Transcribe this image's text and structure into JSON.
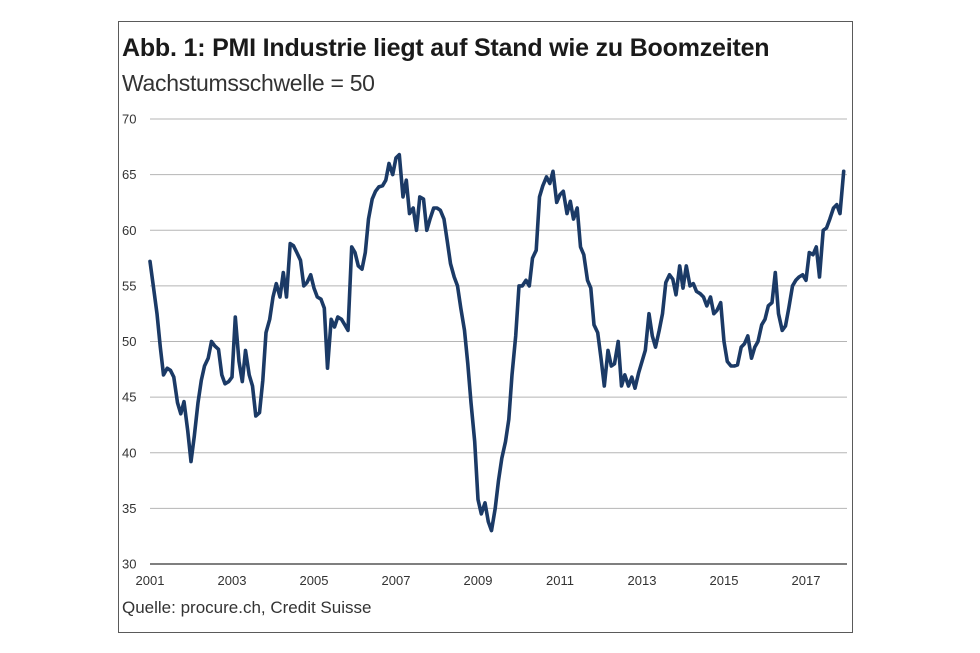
{
  "chart_data": {
    "type": "line",
    "title": "Abb. 1: PMI Industrie liegt auf Stand wie zu Boomzeiten",
    "subtitle": "Wachstumsschwelle = 50",
    "source": "Quelle: procure.ch, Credit Suisse",
    "xlabel": "",
    "ylabel": "",
    "ylim": [
      30,
      70
    ],
    "xlim": [
      2001.0,
      2017.95
    ],
    "grid": true,
    "legend": "none",
    "line_color": "#1b3a66",
    "y_ticks": [
      "30",
      "35",
      "40",
      "45",
      "50",
      "55",
      "60",
      "65",
      "70"
    ],
    "x_ticks": [
      "2001",
      "2003",
      "2005",
      "2007",
      "2009",
      "2011",
      "2013",
      "2015",
      "2017"
    ],
    "series": [
      {
        "name": "PMI Industrie",
        "x": [
          2001.0,
          2001.08,
          2001.17,
          2001.25,
          2001.33,
          2001.42,
          2001.5,
          2001.58,
          2001.67,
          2001.75,
          2001.83,
          2001.92,
          2002.0,
          2002.08,
          2002.17,
          2002.25,
          2002.33,
          2002.42,
          2002.5,
          2002.58,
          2002.67,
          2002.75,
          2002.83,
          2002.92,
          2003.0,
          2003.08,
          2003.17,
          2003.25,
          2003.33,
          2003.42,
          2003.5,
          2003.58,
          2003.67,
          2003.75,
          2003.83,
          2003.92,
          2004.0,
          2004.08,
          2004.17,
          2004.25,
          2004.33,
          2004.42,
          2004.5,
          2004.58,
          2004.67,
          2004.75,
          2004.83,
          2004.92,
          2005.0,
          2005.08,
          2005.17,
          2005.25,
          2005.33,
          2005.42,
          2005.5,
          2005.58,
          2005.67,
          2005.75,
          2005.83,
          2005.92,
          2006.0,
          2006.08,
          2006.17,
          2006.25,
          2006.33,
          2006.42,
          2006.5,
          2006.58,
          2006.67,
          2006.75,
          2006.83,
          2006.92,
          2007.0,
          2007.08,
          2007.17,
          2007.25,
          2007.33,
          2007.42,
          2007.5,
          2007.58,
          2007.67,
          2007.75,
          2007.83,
          2007.92,
          2008.0,
          2008.08,
          2008.17,
          2008.25,
          2008.33,
          2008.42,
          2008.5,
          2008.58,
          2008.67,
          2008.75,
          2008.83,
          2008.92,
          2009.0,
          2009.08,
          2009.17,
          2009.25,
          2009.33,
          2009.42,
          2009.5,
          2009.58,
          2009.67,
          2009.75,
          2009.83,
          2009.92,
          2010.0,
          2010.08,
          2010.17,
          2010.25,
          2010.33,
          2010.42,
          2010.5,
          2010.58,
          2010.67,
          2010.75,
          2010.83,
          2010.92,
          2011.0,
          2011.08,
          2011.17,
          2011.25,
          2011.33,
          2011.42,
          2011.5,
          2011.58,
          2011.67,
          2011.75,
          2011.83,
          2011.92,
          2012.0,
          2012.08,
          2012.17,
          2012.25,
          2012.33,
          2012.42,
          2012.5,
          2012.58,
          2012.67,
          2012.75,
          2012.83,
          2012.92,
          2013.0,
          2013.08,
          2013.17,
          2013.25,
          2013.33,
          2013.42,
          2013.5,
          2013.58,
          2013.67,
          2013.75,
          2013.83,
          2013.92,
          2014.0,
          2014.08,
          2014.17,
          2014.25,
          2014.33,
          2014.42,
          2014.5,
          2014.58,
          2014.67,
          2014.75,
          2014.83,
          2014.92,
          2015.0,
          2015.08,
          2015.17,
          2015.25,
          2015.33,
          2015.42,
          2015.5,
          2015.58,
          2015.67,
          2015.75,
          2015.83,
          2015.92,
          2016.0,
          2016.08,
          2016.17,
          2016.25,
          2016.33,
          2016.42,
          2016.5,
          2016.58,
          2016.67,
          2016.75,
          2016.83,
          2016.92,
          2017.0,
          2017.08,
          2017.17,
          2017.25,
          2017.33,
          2017.42,
          2017.5,
          2017.58,
          2017.67,
          2017.75,
          2017.83,
          2017.92
        ],
        "values": [
          57.2,
          55.0,
          52.5,
          49.5,
          47.0,
          47.6,
          47.4,
          46.8,
          44.5,
          43.5,
          44.6,
          42.0,
          39.2,
          41.5,
          44.5,
          46.5,
          47.8,
          48.5,
          50.0,
          49.6,
          49.3,
          47.0,
          46.2,
          46.4,
          46.8,
          52.2,
          48.2,
          46.4,
          49.2,
          47.0,
          46.0,
          43.3,
          43.6,
          46.5,
          50.8,
          52.0,
          54.0,
          55.2,
          54.0,
          56.2,
          54.0,
          58.8,
          58.6,
          58.0,
          57.3,
          55.0,
          55.3,
          56.0,
          54.8,
          54.0,
          53.8,
          53.0,
          47.6,
          52.0,
          51.3,
          52.2,
          52.0,
          51.5,
          51.0,
          58.5,
          58.0,
          56.8,
          56.5,
          58.0,
          61.0,
          62.8,
          63.5,
          63.9,
          64.0,
          64.5,
          66.0,
          65.0,
          66.5,
          66.8,
          63.0,
          64.5,
          61.5,
          62.0,
          60.0,
          63.0,
          62.8,
          60.0,
          61.0,
          62.0,
          62.0,
          61.8,
          61.0,
          59.0,
          57.0,
          55.8,
          55.0,
          53.0,
          51.0,
          48.0,
          44.5,
          41.0,
          35.8,
          34.5,
          35.5,
          33.8,
          33.0,
          35.0,
          37.5,
          39.5,
          41.0,
          43.0,
          47.0,
          50.5,
          55.0,
          55.0,
          55.5,
          55.0,
          57.5,
          58.2,
          63.0,
          64.0,
          64.8,
          64.2,
          65.3,
          62.5,
          63.2,
          63.5,
          61.5,
          62.6,
          61.0,
          62.0,
          58.5,
          57.8,
          55.5,
          54.8,
          51.5,
          50.8,
          48.5,
          46.0,
          49.2,
          47.8,
          48.0,
          50.0,
          46.0,
          47.0,
          46.0,
          46.8,
          45.8,
          47.2,
          48.2,
          49.2,
          52.5,
          50.5,
          49.5,
          51.0,
          52.5,
          55.3,
          56.0,
          55.6,
          54.2,
          56.8,
          54.8,
          56.8,
          55.0,
          55.2,
          54.5,
          54.3,
          54.0,
          53.2,
          54.0,
          52.5,
          52.8,
          53.5,
          50.0,
          48.2,
          47.8,
          47.8,
          47.9,
          49.5,
          49.8,
          50.5,
          48.5,
          49.5,
          50.0,
          51.5,
          52.0,
          53.2,
          53.5,
          56.2,
          52.5,
          51.0,
          51.4,
          53.0,
          55.0,
          55.5,
          55.8,
          56.0,
          55.5,
          58.0,
          57.8,
          58.5,
          55.8,
          60.0,
          60.2,
          61.0,
          62.0,
          62.3,
          61.5,
          65.3
        ]
      }
    ]
  }
}
